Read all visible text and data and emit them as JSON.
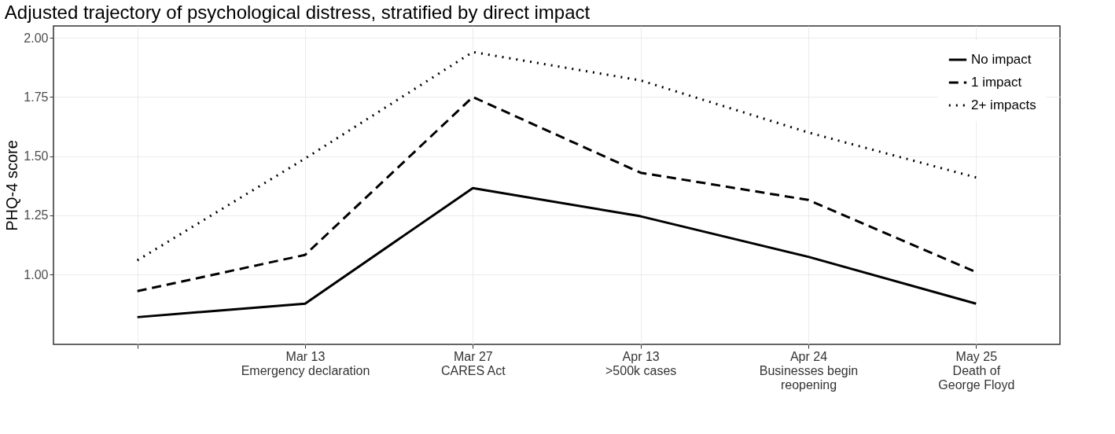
{
  "chart_data": {
    "type": "line",
    "title": "Adjusted trajectory of psychological distress, stratified by direct impact",
    "ylabel": "PHQ-4 score",
    "categories": [
      null,
      "Mar 13\nEmergency declaration",
      "Mar 27\nCARES Act",
      "Apr 13\n>500k cases",
      "Apr 24\nBusinesses begin\nreopening",
      "May 25\nDeath of\nGeorge Floyd"
    ],
    "ylim": [
      0.705,
      2.05
    ],
    "yticks": [
      {
        "value": 1,
        "label": "1.00"
      },
      {
        "value": 1.25,
        "label": "1.25"
      },
      {
        "value": 1.5,
        "label": "1.50"
      },
      {
        "value": 1.75,
        "label": "1.75"
      },
      {
        "value": 2,
        "label": "2.00"
      }
    ],
    "grid": true,
    "legend": "top right",
    "series": [
      {
        "name": "No impact",
        "color": "#000000",
        "line_style": "solid",
        "values": [
          0.82,
          0.877,
          1.365,
          1.246,
          1.075,
          0.877
        ]
      },
      {
        "name": "1 impact",
        "color": "#000000",
        "line_style": "dashed",
        "values": [
          0.93,
          1.083,
          1.75,
          1.43,
          1.315,
          1.01
        ]
      },
      {
        "name": "2+ impacts",
        "color": "#000000",
        "line_style": "dotted",
        "values": [
          1.06,
          1.49,
          1.94,
          1.82,
          1.6,
          1.41
        ]
      }
    ]
  }
}
